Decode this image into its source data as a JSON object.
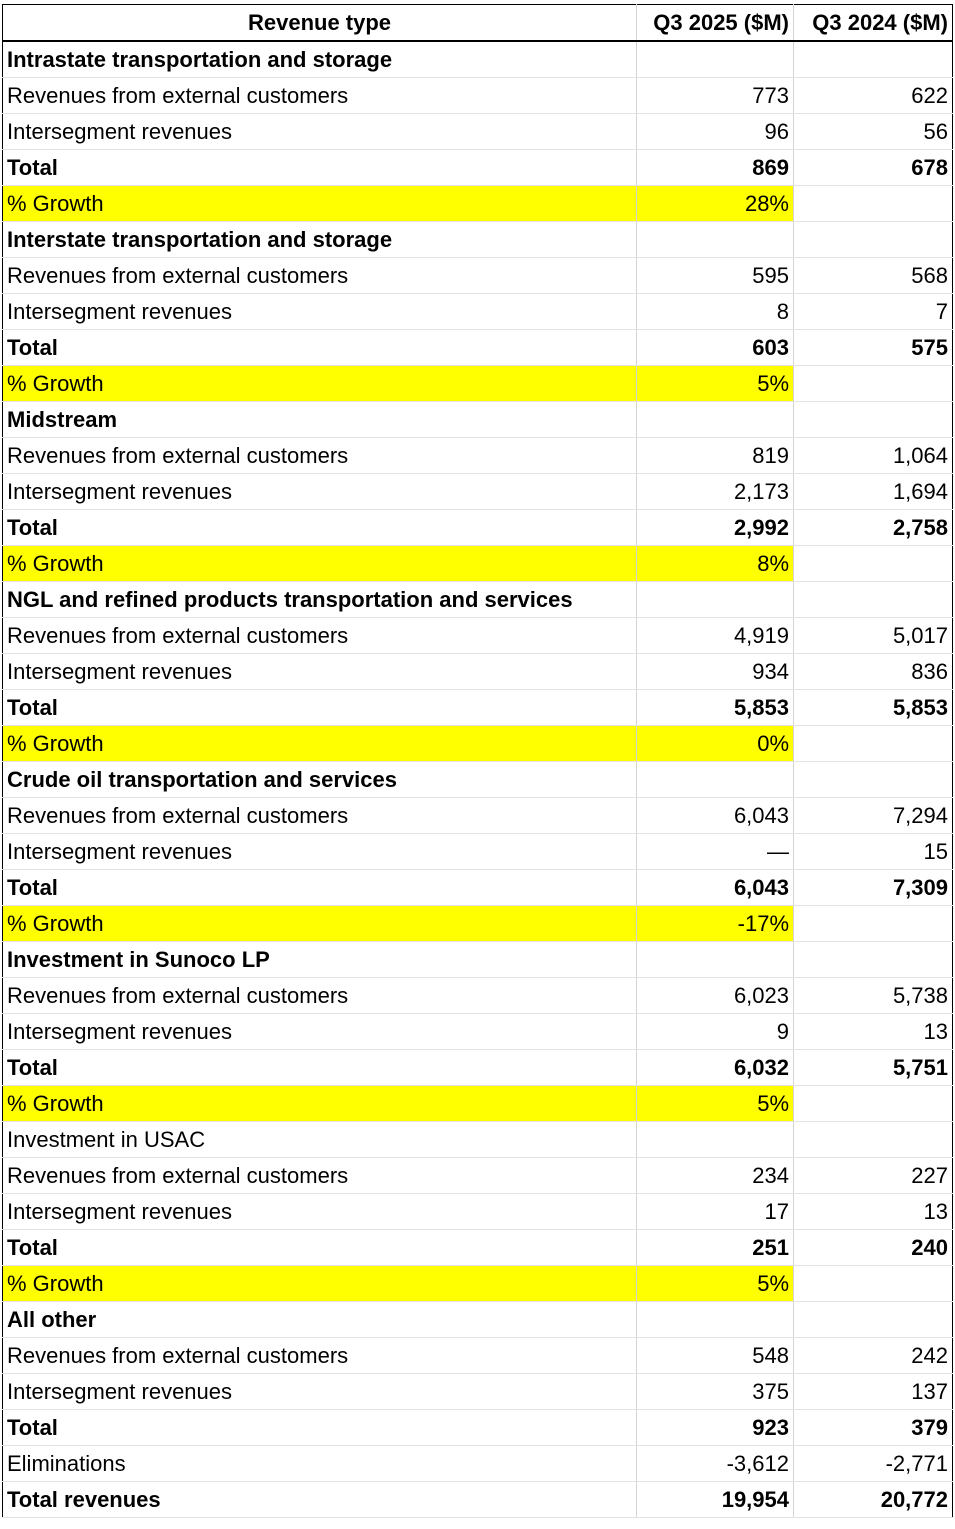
{
  "header": {
    "col1": "Revenue type",
    "col2": "Q3 2025 ($M)",
    "col3": "Q3 2024 ($M)"
  },
  "rows": [
    {
      "type": "section",
      "label": "Intrastate transportation and storage",
      "a": "",
      "b": ""
    },
    {
      "type": "data",
      "label": "Revenues from external customers",
      "a": "773",
      "b": "622"
    },
    {
      "type": "data",
      "label": "Intersegment revenues",
      "a": "96",
      "b": "56"
    },
    {
      "type": "total",
      "label": "Total",
      "a": "869",
      "b": "678"
    },
    {
      "type": "growth",
      "label": "% Growth",
      "a": "28%",
      "b": ""
    },
    {
      "type": "section",
      "label": "Interstate transportation and storage",
      "a": "",
      "b": ""
    },
    {
      "type": "data",
      "label": "Revenues from external customers",
      "a": "595",
      "b": "568"
    },
    {
      "type": "data",
      "label": "Intersegment revenues",
      "a": "8",
      "b": "7"
    },
    {
      "type": "total",
      "label": "Total",
      "a": "603",
      "b": "575"
    },
    {
      "type": "growth",
      "label": "% Growth",
      "a": "5%",
      "b": ""
    },
    {
      "type": "section",
      "label": "Midstream",
      "a": "",
      "b": ""
    },
    {
      "type": "data",
      "label": "Revenues from external customers",
      "a": "819",
      "b": "1,064"
    },
    {
      "type": "data",
      "label": "Intersegment revenues",
      "a": "2,173",
      "b": "1,694"
    },
    {
      "type": "total",
      "label": "Total",
      "a": "2,992",
      "b": "2,758"
    },
    {
      "type": "growth",
      "label": "% Growth",
      "a": "8%",
      "b": ""
    },
    {
      "type": "section",
      "label": "NGL and refined products transportation and services",
      "a": "",
      "b": ""
    },
    {
      "type": "data",
      "label": "Revenues from external customers",
      "a": "4,919",
      "b": "5,017"
    },
    {
      "type": "data",
      "label": "Intersegment revenues",
      "a": "934",
      "b": "836"
    },
    {
      "type": "total",
      "label": "Total",
      "a": "5,853",
      "b": "5,853"
    },
    {
      "type": "growth",
      "label": "% Growth",
      "a": "0%",
      "b": ""
    },
    {
      "type": "section",
      "label": "Crude oil transportation and services",
      "a": "",
      "b": ""
    },
    {
      "type": "data",
      "label": "Revenues from external customers",
      "a": "6,043",
      "b": "7,294"
    },
    {
      "type": "data",
      "label": "Intersegment revenues",
      "a": "—",
      "b": "15"
    },
    {
      "type": "total",
      "label": "Total",
      "a": "6,043",
      "b": "7,309"
    },
    {
      "type": "growth",
      "label": "% Growth",
      "a": "-17%",
      "b": ""
    },
    {
      "type": "section",
      "label": "Investment in Sunoco LP",
      "a": "",
      "b": ""
    },
    {
      "type": "data",
      "label": "Revenues from external customers",
      "a": "6,023",
      "b": "5,738"
    },
    {
      "type": "data",
      "label": "Intersegment revenues",
      "a": "9",
      "b": "13"
    },
    {
      "type": "total",
      "label": "Total",
      "a": "6,032",
      "b": "5,751"
    },
    {
      "type": "growth",
      "label": "% Growth",
      "a": "5%",
      "b": ""
    },
    {
      "type": "plain",
      "label": "Investment in USAC",
      "a": "",
      "b": ""
    },
    {
      "type": "data",
      "label": "Revenues from external customers",
      "a": "234",
      "b": "227"
    },
    {
      "type": "data",
      "label": "Intersegment revenues",
      "a": "17",
      "b": "13"
    },
    {
      "type": "total",
      "label": "Total",
      "a": "251",
      "b": "240"
    },
    {
      "type": "growth",
      "label": "% Growth",
      "a": "5%",
      "b": ""
    },
    {
      "type": "section",
      "label": "All other",
      "a": "",
      "b": ""
    },
    {
      "type": "data",
      "label": "Revenues from external customers",
      "a": "548",
      "b": "242"
    },
    {
      "type": "data",
      "label": "Intersegment revenues",
      "a": "375",
      "b": "137"
    },
    {
      "type": "total-noborder",
      "label": "Total",
      "a": "923",
      "b": "379"
    },
    {
      "type": "data",
      "label": "Eliminations",
      "a": "-3,612",
      "b": "-2,771"
    },
    {
      "type": "grand",
      "label": "Total revenues",
      "a": "19,954",
      "b": "20,772"
    }
  ],
  "colors": {
    "highlight": "#ffff00",
    "gridline": "#d4d4d4",
    "border": "#000000"
  }
}
